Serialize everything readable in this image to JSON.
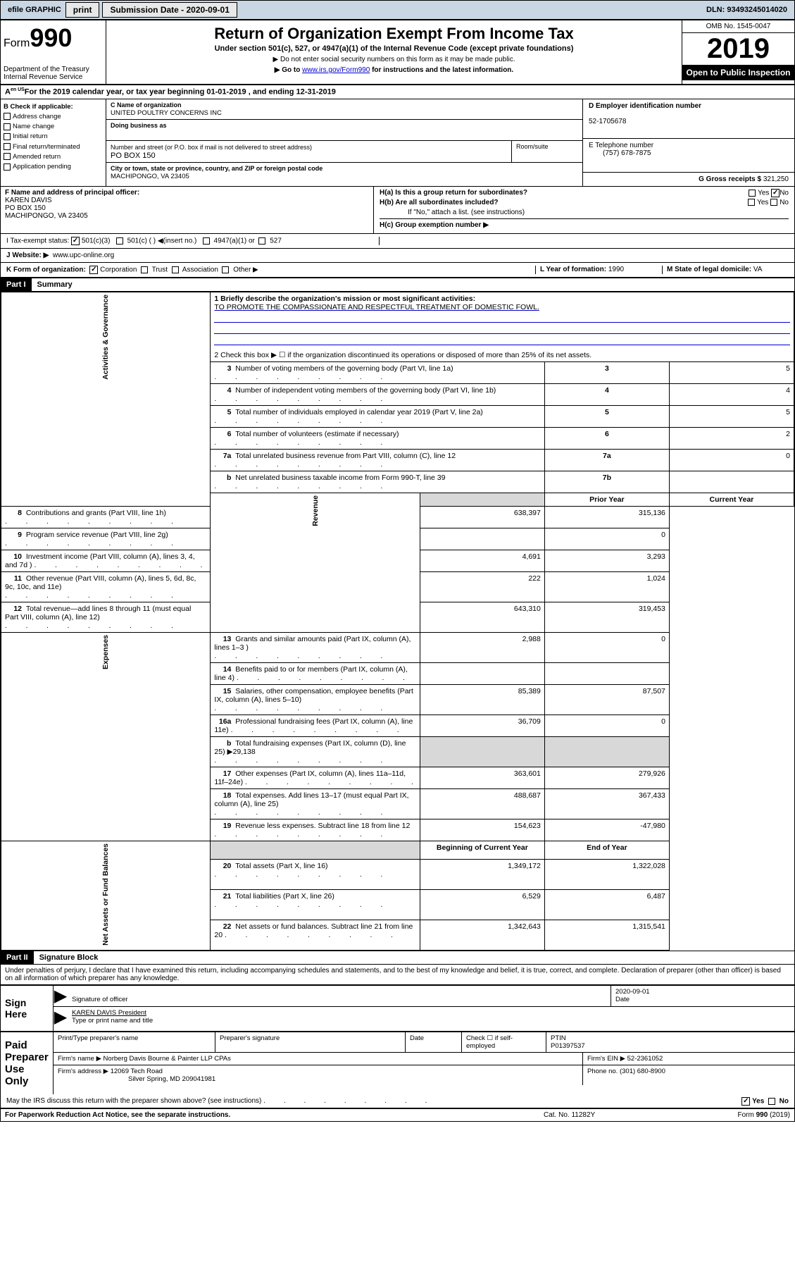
{
  "topbar": {
    "efile": "efile GRAPHIC",
    "print": "print",
    "subdate_label": "Submission Date - 2020-09-01",
    "dln": "DLN: 93493245014020"
  },
  "header": {
    "form_prefix": "Form",
    "form_num": "990",
    "dept": "Department of the Treasury\nInternal Revenue Service",
    "title": "Return of Organization Exempt From Income Tax",
    "sub": "Under section 501(c), 527, or 4947(a)(1) of the Internal Revenue Code (except private foundations)",
    "note1": "▶ Do not enter social security numbers on this form as it may be made public.",
    "note2_pre": "▶ Go to ",
    "note2_link": "www.irs.gov/Form990",
    "note2_post": " for instructions and the latest information.",
    "omb": "OMB No. 1545-0047",
    "year": "2019",
    "inspect": "Open to Public Inspection"
  },
  "period": "For the 2019 calendar year, or tax year beginning 01-01-2019    , and ending 12-31-2019",
  "box_b": {
    "label": "B Check if applicable:",
    "items": [
      "Address change",
      "Name change",
      "Initial return",
      "Final return/terminated",
      "Amended return",
      "Application pending"
    ]
  },
  "box_c": {
    "name_lead": "C Name of organization",
    "name": "UNITED POULTRY CONCERNS INC",
    "dba_lead": "Doing business as",
    "addr_lead": "Number and street (or P.O. box if mail is not delivered to street address)",
    "addr": "PO BOX 150",
    "room_lead": "Room/suite",
    "city_lead": "City or town, state or province, country, and ZIP or foreign postal code",
    "city": "MACHIPONGO, VA  23405"
  },
  "box_d": {
    "lead": "D Employer identification number",
    "val": "52-1705678"
  },
  "box_e": {
    "lead": "E Telephone number",
    "val": "(757) 678-7875"
  },
  "box_g": {
    "lead": "G Gross receipts $",
    "val": "321,250"
  },
  "box_f": {
    "lead": "F  Name and address of principal officer:",
    "name": "KAREN DAVIS",
    "addr1": "PO BOX 150",
    "addr2": "MACHIPONGO, VA  23405"
  },
  "box_h": {
    "ha": "H(a)  Is this a group return for subordinates?",
    "hb": "H(b)  Are all subordinates included?",
    "hb_note": "If \"No,\" attach a list. (see instructions)",
    "hc": "H(c)  Group exemption number ▶",
    "yes": "Yes",
    "no": "No"
  },
  "line_i": {
    "lead": "I     Tax-exempt status:",
    "opts": [
      "501(c)(3)",
      "501(c) (  ) ◀(insert no.)",
      "4947(a)(1) or",
      "527"
    ]
  },
  "line_j": {
    "lead": "J     Website: ▶",
    "val": "www.upc-online.org"
  },
  "line_k": {
    "lead": "K Form of organization:",
    "opts": [
      "Corporation",
      "Trust",
      "Association",
      "Other ▶"
    ]
  },
  "line_l": {
    "lead": "L Year of formation:",
    "val": "1990"
  },
  "line_m": {
    "lead": "M State of legal domicile:",
    "val": "VA"
  },
  "part1": {
    "num": "Part I",
    "title": "Summary"
  },
  "summary": {
    "q1_lead": "1   Briefly describe the organization's mission or most significant activities:",
    "q1": "TO PROMOTE THE COMPASSIONATE AND RESPECTFUL TREATMENT OF DOMESTIC FOWL.",
    "q2": "2   Check this box ▶ ☐  if the organization discontinued its operations or disposed of more than 25% of its net assets.",
    "rows_gov": [
      {
        "n": "3",
        "t": "Number of voting members of the governing body (Part VI, line 1a)",
        "box": "3",
        "v": "5"
      },
      {
        "n": "4",
        "t": "Number of independent voting members of the governing body (Part VI, line 1b)",
        "box": "4",
        "v": "4"
      },
      {
        "n": "5",
        "t": "Total number of individuals employed in calendar year 2019 (Part V, line 2a)",
        "box": "5",
        "v": "5"
      },
      {
        "n": "6",
        "t": "Total number of volunteers (estimate if necessary)",
        "box": "6",
        "v": "2"
      },
      {
        "n": "7a",
        "t": "Total unrelated business revenue from Part VIII, column (C), line 12",
        "box": "7a",
        "v": "0"
      },
      {
        "n": "b",
        "t": "Net unrelated business taxable income from Form 990-T, line 39",
        "box": "7b",
        "v": ""
      }
    ],
    "col_prior": "Prior Year",
    "col_current": "Current Year",
    "rows_rev": [
      {
        "n": "8",
        "t": "Contributions and grants (Part VIII, line 1h)",
        "p": "638,397",
        "c": "315,136"
      },
      {
        "n": "9",
        "t": "Program service revenue (Part VIII, line 2g)",
        "p": "",
        "c": "0"
      },
      {
        "n": "10",
        "t": "Investment income (Part VIII, column (A), lines 3, 4, and 7d )",
        "p": "4,691",
        "c": "3,293"
      },
      {
        "n": "11",
        "t": "Other revenue (Part VIII, column (A), lines 5, 6d, 8c, 9c, 10c, and 11e)",
        "p": "222",
        "c": "1,024"
      },
      {
        "n": "12",
        "t": "Total revenue—add lines 8 through 11 (must equal Part VIII, column (A), line 12)",
        "p": "643,310",
        "c": "319,453"
      }
    ],
    "rows_exp": [
      {
        "n": "13",
        "t": "Grants and similar amounts paid (Part IX, column (A), lines 1–3 )",
        "p": "2,988",
        "c": "0"
      },
      {
        "n": "14",
        "t": "Benefits paid to or for members (Part IX, column (A), line 4)",
        "p": "",
        "c": ""
      },
      {
        "n": "15",
        "t": "Salaries, other compensation, employee benefits (Part IX, column (A), lines 5–10)",
        "p": "85,389",
        "c": "87,507"
      },
      {
        "n": "16a",
        "t": "Professional fundraising fees (Part IX, column (A), line 11e)",
        "p": "36,709",
        "c": "0"
      },
      {
        "n": "b",
        "t": "Total fundraising expenses (Part IX, column (D), line 25) ▶29,138",
        "p": "shade",
        "c": "shade"
      },
      {
        "n": "17",
        "t": "Other expenses (Part IX, column (A), lines 11a–11d, 11f–24e)",
        "p": "363,601",
        "c": "279,926"
      },
      {
        "n": "18",
        "t": "Total expenses. Add lines 13–17 (must equal Part IX, column (A), line 25)",
        "p": "488,687",
        "c": "367,433"
      },
      {
        "n": "19",
        "t": "Revenue less expenses. Subtract line 18 from line 12",
        "p": "154,623",
        "c": "-47,980"
      }
    ],
    "col_begin": "Beginning of Current Year",
    "col_end": "End of Year",
    "rows_net": [
      {
        "n": "20",
        "t": "Total assets (Part X, line 16)",
        "p": "1,349,172",
        "c": "1,322,028"
      },
      {
        "n": "21",
        "t": "Total liabilities (Part X, line 26)",
        "p": "6,529",
        "c": "6,487"
      },
      {
        "n": "22",
        "t": "Net assets or fund balances. Subtract line 21 from line 20",
        "p": "1,342,643",
        "c": "1,315,541"
      }
    ],
    "side_gov": "Activities & Governance",
    "side_rev": "Revenue",
    "side_exp": "Expenses",
    "side_net": "Net Assets or Fund Balances"
  },
  "part2": {
    "num": "Part II",
    "title": "Signature Block"
  },
  "perjury": "Under penalties of perjury, I declare that I have examined this return, including accompanying schedules and statements, and to the best of my knowledge and belief, it is true, correct, and complete. Declaration of preparer (other than officer) is based on all information of which preparer has any knowledge.",
  "sign": {
    "here": "Sign Here",
    "date": "2020-09-01",
    "sig_lead": "Signature of officer",
    "date_lead": "Date",
    "name": "KAREN DAVIS  President",
    "name_lead": "Type or print name and title"
  },
  "paid": {
    "here": "Paid Preparer Use Only",
    "c1": "Print/Type preparer's name",
    "c2": "Preparer's signature",
    "c3": "Date",
    "c4a": "Check ☐ if self-employed",
    "c5": "PTIN",
    "ptin": "P01397537",
    "firm_lead": "Firm's name     ▶",
    "firm": "Norberg Davis Bourne & Painter LLP CPAs",
    "ein_lead": "Firm's EIN ▶",
    "ein": "52-2361052",
    "addr_lead": "Firm's address ▶",
    "addr1": "12069 Tech Road",
    "addr2": "Silver Spring, MD  209041981",
    "phone_lead": "Phone no.",
    "phone": "(301) 680-8900"
  },
  "discuss": "May the IRS discuss this return with the preparer shown above? (see instructions)",
  "footer": {
    "pra": "For Paperwork Reduction Act Notice, see the separate instructions.",
    "cat": "Cat. No. 11282Y",
    "form": "Form 990 (2019)"
  }
}
